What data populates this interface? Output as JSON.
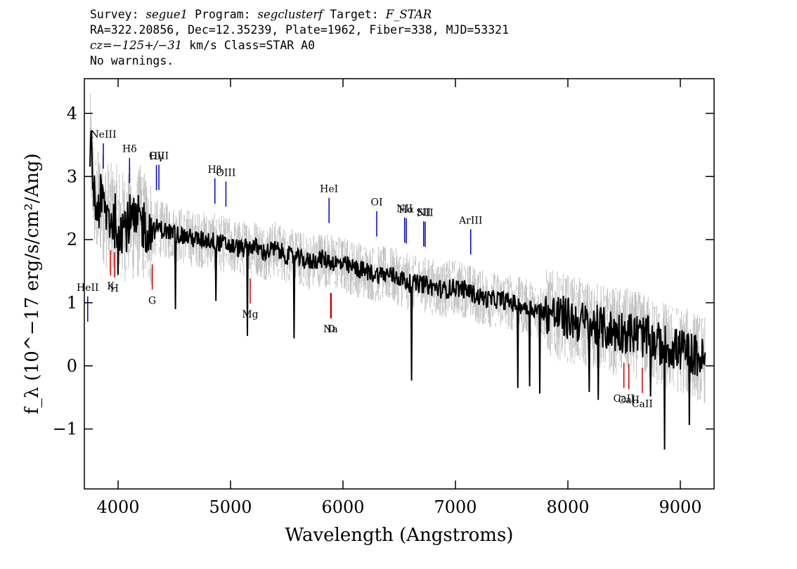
{
  "header": {
    "line1": {
      "survey_label": "Survey: ",
      "survey": "segue1",
      "program_label": " Program: ",
      "program": "segclusterf",
      "target_label": " Target: ",
      "target": "F_STAR"
    },
    "line2": "RA=322.20856, Dec=12.35239, Plate=1962, Fiber=338, MJD=53321",
    "line3": {
      "cz": "cz=−125+/−31",
      "rest": " km/s Class=STAR A0"
    },
    "line4": "No warnings."
  },
  "colors": {
    "spectrum": "#000000",
    "error_band": "#c0c0c0",
    "emission_marker": "#0000cc",
    "absorption_marker": "#cc0000"
  },
  "chart_data": {
    "type": "line",
    "xlabel": "Wavelength (Angstroms)",
    "ylabel": "f_λ (10^−17 erg/s/cm²/Ang)",
    "xlim": [
      3700,
      9300
    ],
    "ylim": [
      -1.95,
      4.55
    ],
    "x_ticks": [
      4000,
      5000,
      6000,
      7000,
      8000,
      9000
    ],
    "y_ticks": [
      -1,
      0,
      1,
      2,
      3,
      4
    ],
    "grid": false,
    "series": [
      {
        "role": "spectrum",
        "x": [
          3750,
          3800,
          3850,
          3900,
          3950,
          4000,
          4050,
          4100,
          4150,
          4200,
          4250,
          4300,
          4350,
          4400,
          4500,
          4600,
          4700,
          4800,
          4900,
          5000,
          5100,
          5200,
          5300,
          5400,
          5500,
          5600,
          5700,
          5800,
          5900,
          6000,
          6100,
          6200,
          6300,
          6400,
          6500,
          6600,
          6700,
          6800,
          6900,
          7000,
          7100,
          7200,
          7300,
          7400,
          7500,
          7600,
          7700,
          7800,
          7900,
          8000,
          8100,
          8200,
          8300,
          8400,
          8500,
          8600,
          8700,
          8800,
          8900,
          9000,
          9100,
          9200
        ],
        "y": [
          3.5,
          2.5,
          2.6,
          2.4,
          2.3,
          2.3,
          2.2,
          2.3,
          2.2,
          2.3,
          2.2,
          2.1,
          2.2,
          2.15,
          2.1,
          2.05,
          2.0,
          2.0,
          1.95,
          1.9,
          1.85,
          1.9,
          1.8,
          1.85,
          1.75,
          1.7,
          1.65,
          1.7,
          1.65,
          1.6,
          1.55,
          1.5,
          1.45,
          1.45,
          1.4,
          1.3,
          1.3,
          1.25,
          1.2,
          1.25,
          1.2,
          1.1,
          1.05,
          1.05,
          1.0,
          0.95,
          0.9,
          0.85,
          0.8,
          0.75,
          0.7,
          0.65,
          0.6,
          0.55,
          0.55,
          0.5,
          0.45,
          0.35,
          0.3,
          0.25,
          0.2,
          0.1
        ]
      }
    ],
    "line_markers": [
      {
        "label": "HeII",
        "x": 3730,
        "type": "emission"
      },
      {
        "label": "NeIII",
        "x": 3869,
        "type": "emission"
      },
      {
        "label": "Hδ",
        "x": 4102,
        "type": "emission"
      },
      {
        "label": "Hγ",
        "x": 4341,
        "type": "emission"
      },
      {
        "label": "OIII",
        "x": 4363,
        "type": "emission"
      },
      {
        "label": "Hβ",
        "x": 4861,
        "type": "emission"
      },
      {
        "label": "OIII",
        "x": 4959,
        "type": "emission"
      },
      {
        "label": "HeI",
        "x": 5876,
        "type": "emission"
      },
      {
        "label": "OI",
        "x": 6300,
        "type": "emission"
      },
      {
        "label": "NII",
        "x": 6548,
        "type": "emission"
      },
      {
        "label": "Hα",
        "x": 6563,
        "type": "emission"
      },
      {
        "label": "SII",
        "x": 6717,
        "type": "emission"
      },
      {
        "label": "NII",
        "x": 6731,
        "type": "emission"
      },
      {
        "label": "ArIII",
        "x": 7136,
        "type": "emission"
      },
      {
        "label": "K",
        "x": 3934,
        "type": "absorption"
      },
      {
        "label": "H",
        "x": 3968,
        "type": "absorption"
      },
      {
        "label": "G",
        "x": 4304,
        "type": "absorption"
      },
      {
        "label": "Mg",
        "x": 5175,
        "type": "absorption"
      },
      {
        "label": "Na",
        "x": 5890,
        "type": "absorption"
      },
      {
        "label": "D",
        "x": 5896,
        "type": "absorption"
      },
      {
        "label": "CaII",
        "x": 8498,
        "type": "absorption"
      },
      {
        "label": "CaII",
        "x": 8542,
        "type": "absorption"
      },
      {
        "label": "CaII",
        "x": 8662,
        "type": "absorption"
      }
    ]
  }
}
